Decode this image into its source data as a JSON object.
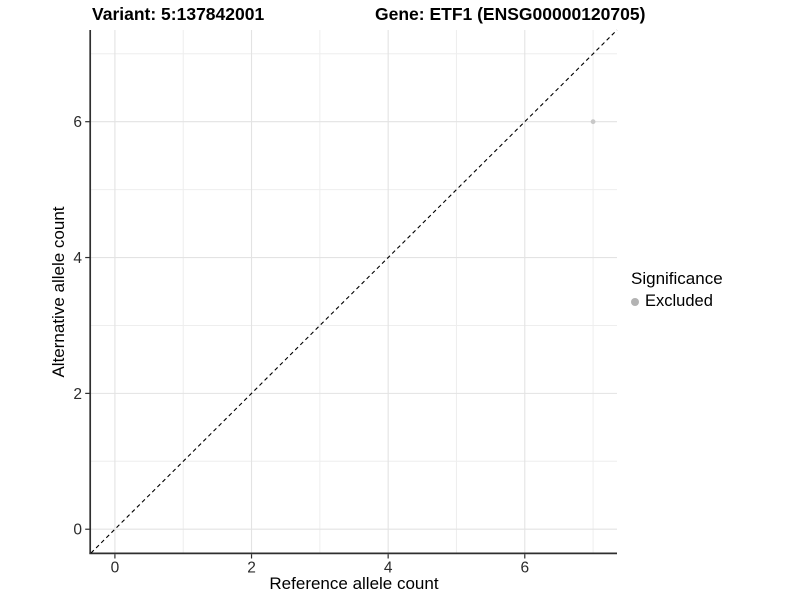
{
  "chart_data": {
    "type": "scatter",
    "title_left": "Variant: 5:137842001",
    "title_right": "Gene: ETF1 (ENSG00000120705)",
    "xlabel": "Reference allele count",
    "ylabel": "Alternative allele count",
    "xlim": [
      -0.35,
      7.35
    ],
    "ylim": [
      -0.35,
      7.35
    ],
    "x_major_ticks": [
      0,
      2,
      4,
      6
    ],
    "x_minor_ticks": [
      1,
      3,
      5,
      7
    ],
    "y_major_ticks": [
      0,
      2,
      4,
      6
    ],
    "y_minor_ticks": [
      1,
      3,
      5,
      7
    ],
    "grid": "on",
    "series": [
      {
        "name": "Excluded",
        "color": "#c8c8c8",
        "points": [
          {
            "x": 7,
            "y": 6
          }
        ]
      }
    ],
    "reference_line": {
      "type": "identity",
      "slope": 1,
      "intercept": 0,
      "style": "dashed",
      "color": "#000000"
    },
    "legend": {
      "title": "Significance",
      "position": "right",
      "entries": [
        {
          "label": "Excluded",
          "marker_color": "#b3b3b3"
        }
      ]
    }
  },
  "colors": {
    "background": "#ffffff",
    "title_text": "#000000",
    "tick_label": "#2b2b2b",
    "axis_line": "#2f2f2f",
    "grid_major": "#e3e3e3",
    "grid_minor": "#eeeeee",
    "dashed_line": "#000000"
  }
}
